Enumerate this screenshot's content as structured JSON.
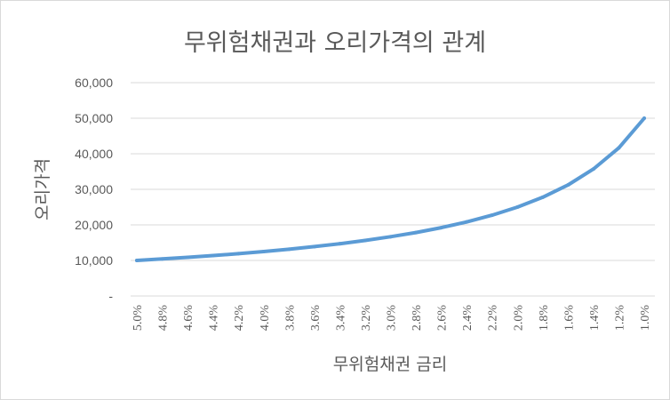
{
  "chart_data": {
    "type": "line",
    "title": "무위험채권과 오리가격의 관계",
    "xlabel": "무위험채권 금리",
    "ylabel": "오리가격",
    "ylim": [
      0,
      60000
    ],
    "yticks": [
      "-",
      "10,000",
      "20,000",
      "30,000",
      "40,000",
      "50,000",
      "60,000"
    ],
    "ytick_values": [
      0,
      10000,
      20000,
      30000,
      40000,
      50000,
      60000
    ],
    "grid": true,
    "legend": "none",
    "x_labels": [
      "5.0%",
      "4.8%",
      "4.6%",
      "4.4%",
      "4.2%",
      "4.0%",
      "3.8%",
      "3.6%",
      "3.4%",
      "3.2%",
      "3.0%",
      "2.8%",
      "2.6%",
      "2.4%",
      "2.2%",
      "2.0%",
      "1.8%",
      "1.6%",
      "1.4%",
      "1.2%",
      "1.0%"
    ],
    "x": [
      5.0,
      4.8,
      4.6,
      4.4,
      4.2,
      4.0,
      3.8,
      3.6,
      3.4,
      3.2,
      3.0,
      2.8,
      2.6,
      2.4,
      2.2,
      2.0,
      1.8,
      1.6,
      1.4,
      1.2,
      1.0
    ],
    "series": [
      {
        "color": "#5b9bd5",
        "values": [
          10000,
          10417,
          10870,
          11364,
          11905,
          12500,
          13158,
          13889,
          14706,
          15625,
          16667,
          17857,
          19231,
          20833,
          22727,
          25000,
          27778,
          31250,
          35714,
          41667,
          50000
        ]
      }
    ]
  }
}
